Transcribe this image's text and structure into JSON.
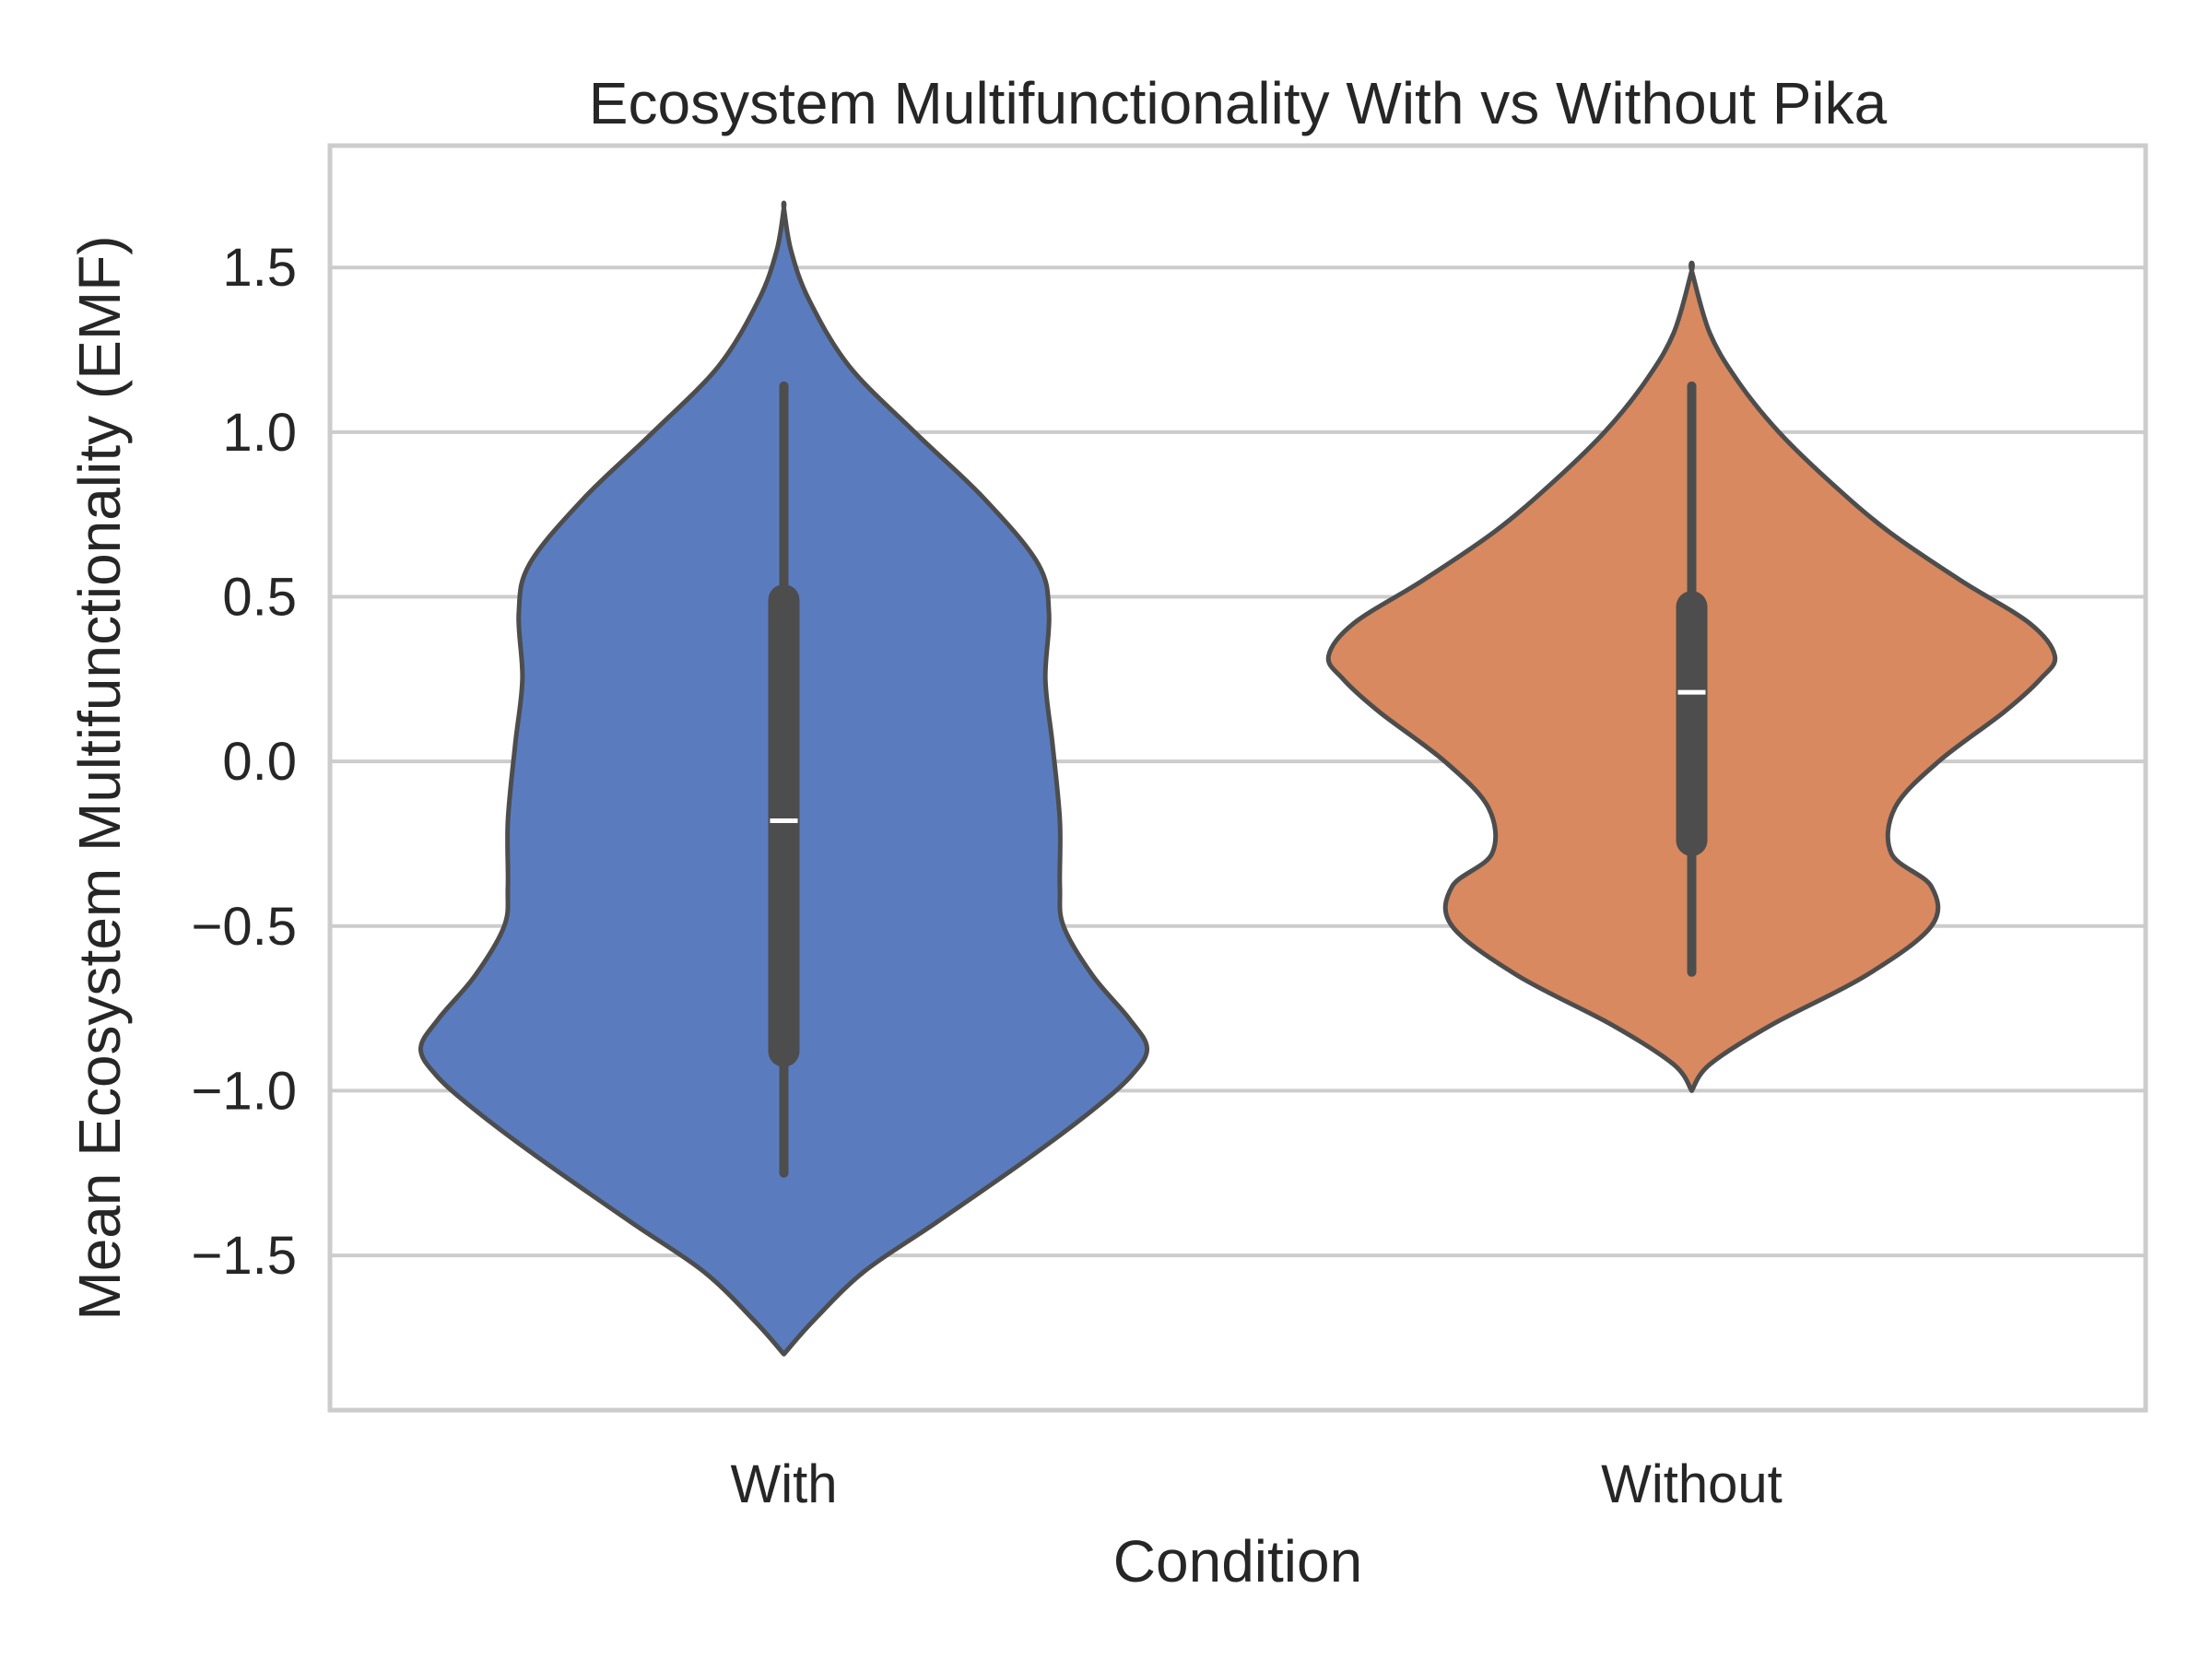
{
  "chart_data": {
    "type": "violin",
    "title": "Ecosystem Multifunctionality With vs Without Pika",
    "xlabel": "Condition",
    "ylabel": "Mean Ecosystem Multifunctionality (EMF)",
    "categories": [
      "With",
      "Without"
    ],
    "ylim": [
      -1.97,
      1.87
    ],
    "yticks": [
      -1.5,
      -1.0,
      -0.5,
      0.0,
      0.5,
      1.0,
      1.5
    ],
    "ytick_labels": [
      "−1.5",
      "−1.0",
      "−0.5",
      "0.0",
      "0.5",
      "1.0",
      "1.5"
    ],
    "grid": "horizontal",
    "series": [
      {
        "name": "With",
        "color": "#5a7cbf",
        "kde_min": -1.8,
        "kde_max": 1.68,
        "density_profile": [
          [
            -1.8,
            0.0
          ],
          [
            -1.7,
            0.08
          ],
          [
            -1.55,
            0.22
          ],
          [
            -1.4,
            0.42
          ],
          [
            -1.2,
            0.68
          ],
          [
            -1.05,
            0.86
          ],
          [
            -0.95,
            0.96
          ],
          [
            -0.87,
            1.0
          ],
          [
            -0.78,
            0.95
          ],
          [
            -0.65,
            0.85
          ],
          [
            -0.5,
            0.77
          ],
          [
            -0.38,
            0.76
          ],
          [
            -0.18,
            0.76
          ],
          [
            0.05,
            0.74
          ],
          [
            0.25,
            0.72
          ],
          [
            0.45,
            0.73
          ],
          [
            0.6,
            0.7
          ],
          [
            0.8,
            0.55
          ],
          [
            1.0,
            0.36
          ],
          [
            1.2,
            0.18
          ],
          [
            1.4,
            0.07
          ],
          [
            1.55,
            0.02
          ],
          [
            1.68,
            0.0
          ]
        ],
        "whisker_low": -1.25,
        "whisker_high": 1.14,
        "q1": -0.88,
        "q3": 0.49,
        "median": -0.18
      },
      {
        "name": "Without",
        "color": "#d8895f",
        "kde_min": -1.0,
        "kde_max": 1.49,
        "density_profile": [
          [
            -1.0,
            0.0
          ],
          [
            -0.92,
            0.05
          ],
          [
            -0.8,
            0.22
          ],
          [
            -0.65,
            0.48
          ],
          [
            -0.5,
            0.66
          ],
          [
            -0.38,
            0.66
          ],
          [
            -0.28,
            0.55
          ],
          [
            -0.14,
            0.56
          ],
          [
            0.0,
            0.68
          ],
          [
            0.15,
            0.86
          ],
          [
            0.25,
            0.96
          ],
          [
            0.32,
            1.0
          ],
          [
            0.42,
            0.93
          ],
          [
            0.55,
            0.74
          ],
          [
            0.7,
            0.54
          ],
          [
            0.85,
            0.38
          ],
          [
            1.0,
            0.24
          ],
          [
            1.15,
            0.13
          ],
          [
            1.3,
            0.05
          ],
          [
            1.49,
            0.0
          ]
        ],
        "whisker_low": -0.64,
        "whisker_high": 1.14,
        "q1": -0.24,
        "q3": 0.47,
        "median": 0.21
      }
    ]
  }
}
